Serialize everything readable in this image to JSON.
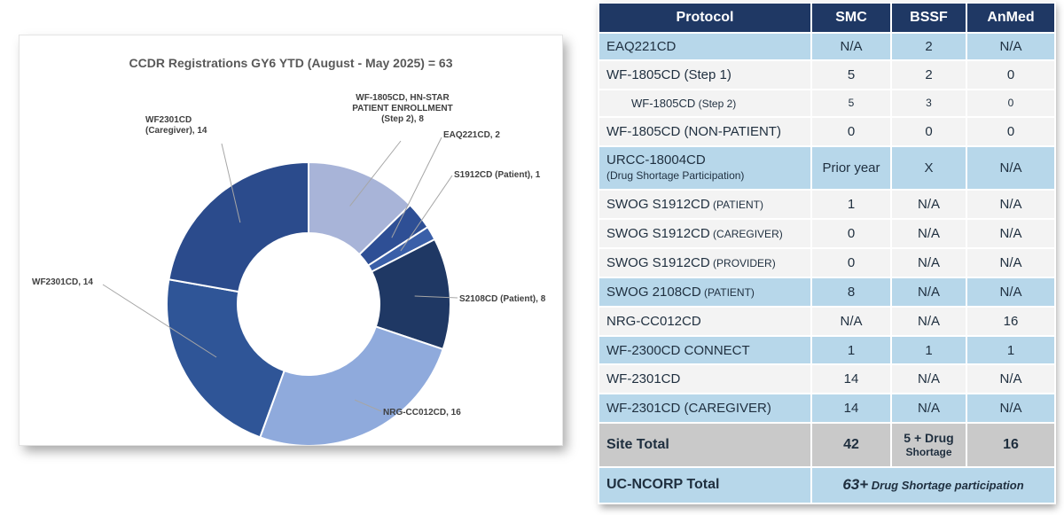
{
  "chart_data": {
    "type": "pie",
    "title": "CCDR Registrations GY6 YTD  (August - May 2025) = 63",
    "slices": [
      {
        "label": "WF-1805CD, HN-STAR PATIENT ENROLLMENT (Step 2), 8",
        "value": 8,
        "color": "#a8b4d8"
      },
      {
        "label": "EAQ221CD, 2",
        "value": 2,
        "color": "#2e4f95"
      },
      {
        "label": "S1912CD (Patient), 1",
        "value": 1,
        "color": "#3a5fa8"
      },
      {
        "label": "S2108CD (Patient), 8",
        "value": 8,
        "color": "#1f3864"
      },
      {
        "label": "NRG-CC012CD, 16",
        "value": 16,
        "color": "#8faadc"
      },
      {
        "label": "WF2301CD, 14",
        "value": 14,
        "color": "#2f5597"
      },
      {
        "label": "WF2301CD (Caregiver), 14",
        "value": 14,
        "color": "#2b4b8c"
      }
    ]
  },
  "table": {
    "headers": [
      "Protocol",
      "SMC",
      "BSSF",
      "AnMed"
    ],
    "rows": [
      {
        "name": "EAQ221CD",
        "sub": "",
        "smc": "N/A",
        "bssf": "2",
        "anmed": "N/A",
        "style": "row-blue"
      },
      {
        "name": "WF-1805CD (Step 1)",
        "sub": "",
        "smc": "5",
        "bssf": "2",
        "anmed": "0",
        "style": "row-white"
      },
      {
        "name": "WF-1805CD",
        "sub": " (Step 2)",
        "smc": "5",
        "bssf": "3",
        "anmed": "0",
        "style": "row-white"
      },
      {
        "name": "WF-1805CD (NON-PATIENT)",
        "sub": "",
        "smc": "0",
        "bssf": "0",
        "anmed": "0",
        "style": "row-white"
      },
      {
        "name": "URCC-18004CD",
        "sub": "(Drug Shortage Participation)",
        "smc": "Prior year",
        "bssf": "X",
        "anmed": "N/A",
        "style": "row-blue"
      },
      {
        "name": "SWOG S1912CD",
        "sub": " (PATIENT)",
        "smc": "1",
        "bssf": "N/A",
        "anmed": "N/A",
        "style": "row-white"
      },
      {
        "name": "SWOG S1912CD",
        "sub": " (CAREGIVER)",
        "smc": "0",
        "bssf": "N/A",
        "anmed": "N/A",
        "style": "row-white"
      },
      {
        "name": "SWOG S1912CD",
        "sub": " (PROVIDER)",
        "smc": "0",
        "bssf": "N/A",
        "anmed": "N/A",
        "style": "row-white"
      },
      {
        "name": "SWOG 2108CD",
        "sub": " (PATIENT)",
        "smc": "8",
        "bssf": "N/A",
        "anmed": "N/A",
        "style": "row-blue"
      },
      {
        "name": "NRG-CC012CD",
        "sub": "",
        "smc": "N/A",
        "bssf": "N/A",
        "anmed": "16",
        "style": "row-white"
      },
      {
        "name": "WF-2300CD CONNECT",
        "sub": "",
        "smc": "1",
        "bssf": "1",
        "anmed": "1",
        "style": "row-blue"
      },
      {
        "name": "WF-2301CD",
        "sub": "",
        "smc": "14",
        "bssf": "N/A",
        "anmed": "N/A",
        "style": "row-white"
      },
      {
        "name": "WF-2301CD (CAREGIVER)",
        "sub": "",
        "smc": "14",
        "bssf": "N/A",
        "anmed": "N/A",
        "style": "row-blue"
      }
    ],
    "site_total": {
      "label": "Site Total",
      "smc": "42",
      "bssf_main": "5 + Drug",
      "bssf_sub": "Shortage",
      "anmed": "16"
    },
    "grand_total": {
      "label": "UC-NCORP Total",
      "value_main": "63+",
      "value_sub": " Drug Shortage participation"
    }
  }
}
